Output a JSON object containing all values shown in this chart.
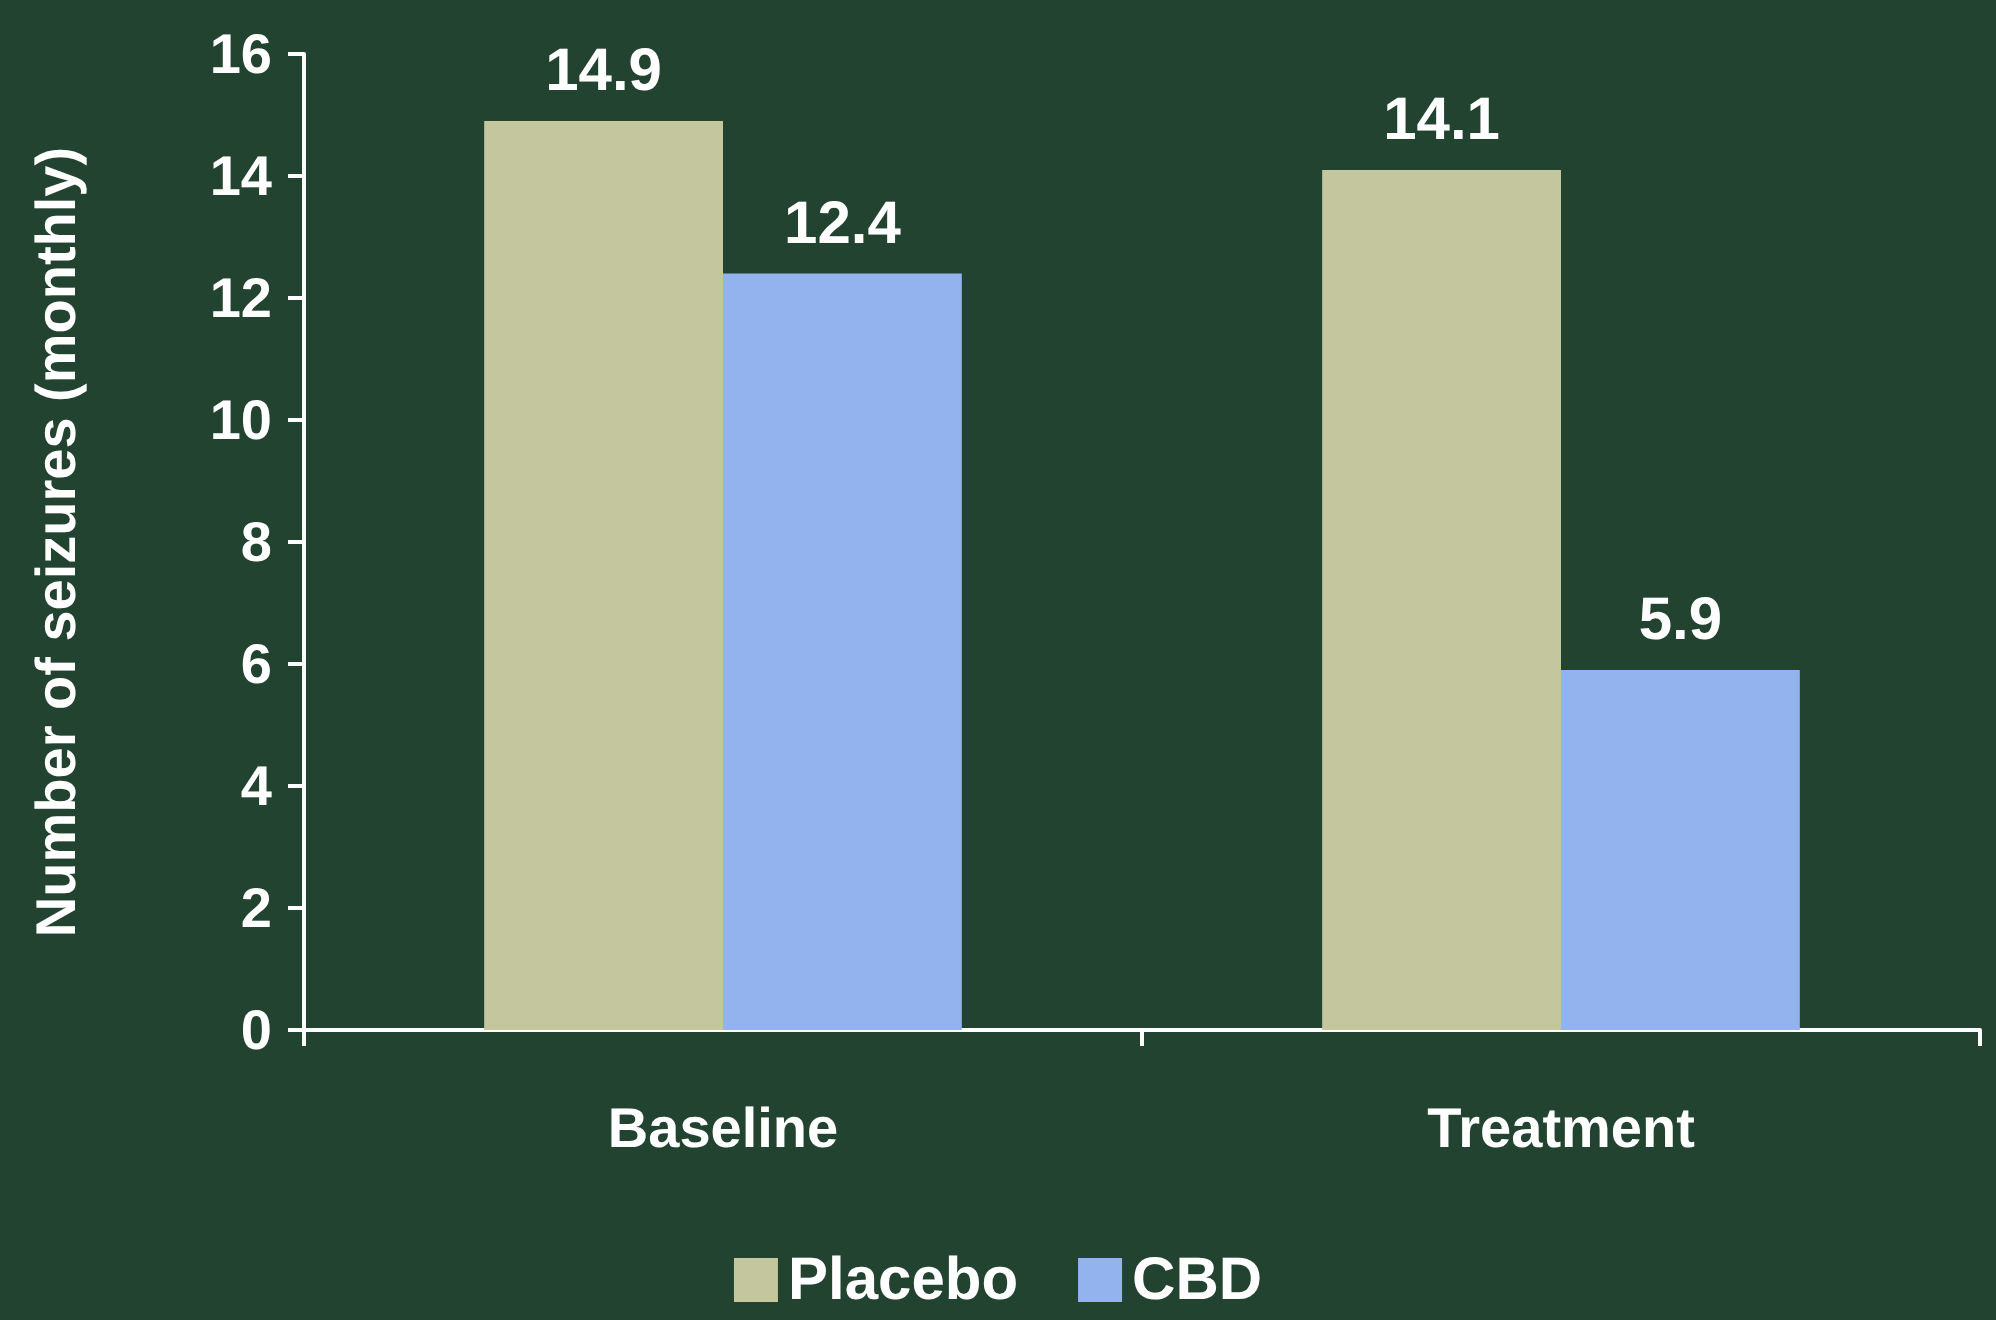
{
  "chart_data": {
    "type": "bar",
    "ylabel": "Number of seizures (monthly)",
    "categories": [
      "Baseline",
      "Treatment"
    ],
    "series": [
      {
        "name": "Placebo",
        "color": "#c4c69e",
        "values": [
          14.9,
          14.1
        ]
      },
      {
        "name": "CBD",
        "color": "#93b3ee",
        "values": [
          12.4,
          5.9
        ]
      }
    ],
    "ylim": [
      0,
      16
    ],
    "yticks": [
      0,
      2,
      4,
      6,
      8,
      10,
      12,
      14,
      16
    ],
    "grid": false,
    "legend": "bottom",
    "data_labels": true
  }
}
